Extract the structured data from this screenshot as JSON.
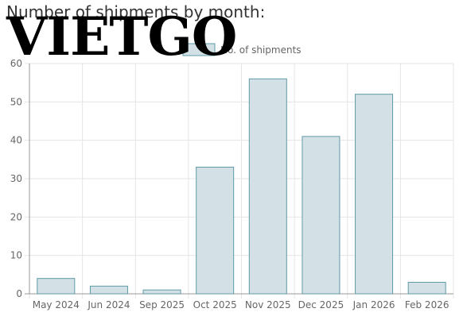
{
  "page": {
    "title": "Number of shipments by month:",
    "logo_text": "VIETGO"
  },
  "colors": {
    "bar_fill": "#d3e1e6",
    "bar_stroke": "#5f9aa5",
    "grid": "#e5e5e5",
    "axis": "#999999",
    "text": "#666666"
  },
  "chart_data": {
    "type": "bar",
    "categories": [
      "May 2024",
      "Jun 2024",
      "Sep 2025",
      "Oct 2025",
      "Nov 2025",
      "Dec 2025",
      "Jan 2026",
      "Feb 2026"
    ],
    "series": [
      {
        "name": "No. of shipments",
        "values": [
          4,
          2,
          1,
          33,
          56,
          41,
          52,
          3
        ]
      }
    ],
    "ylim": [
      0,
      60
    ],
    "yticks": [
      0,
      10,
      20,
      30,
      40,
      50,
      60
    ],
    "grid": true,
    "legend_position": "top"
  }
}
